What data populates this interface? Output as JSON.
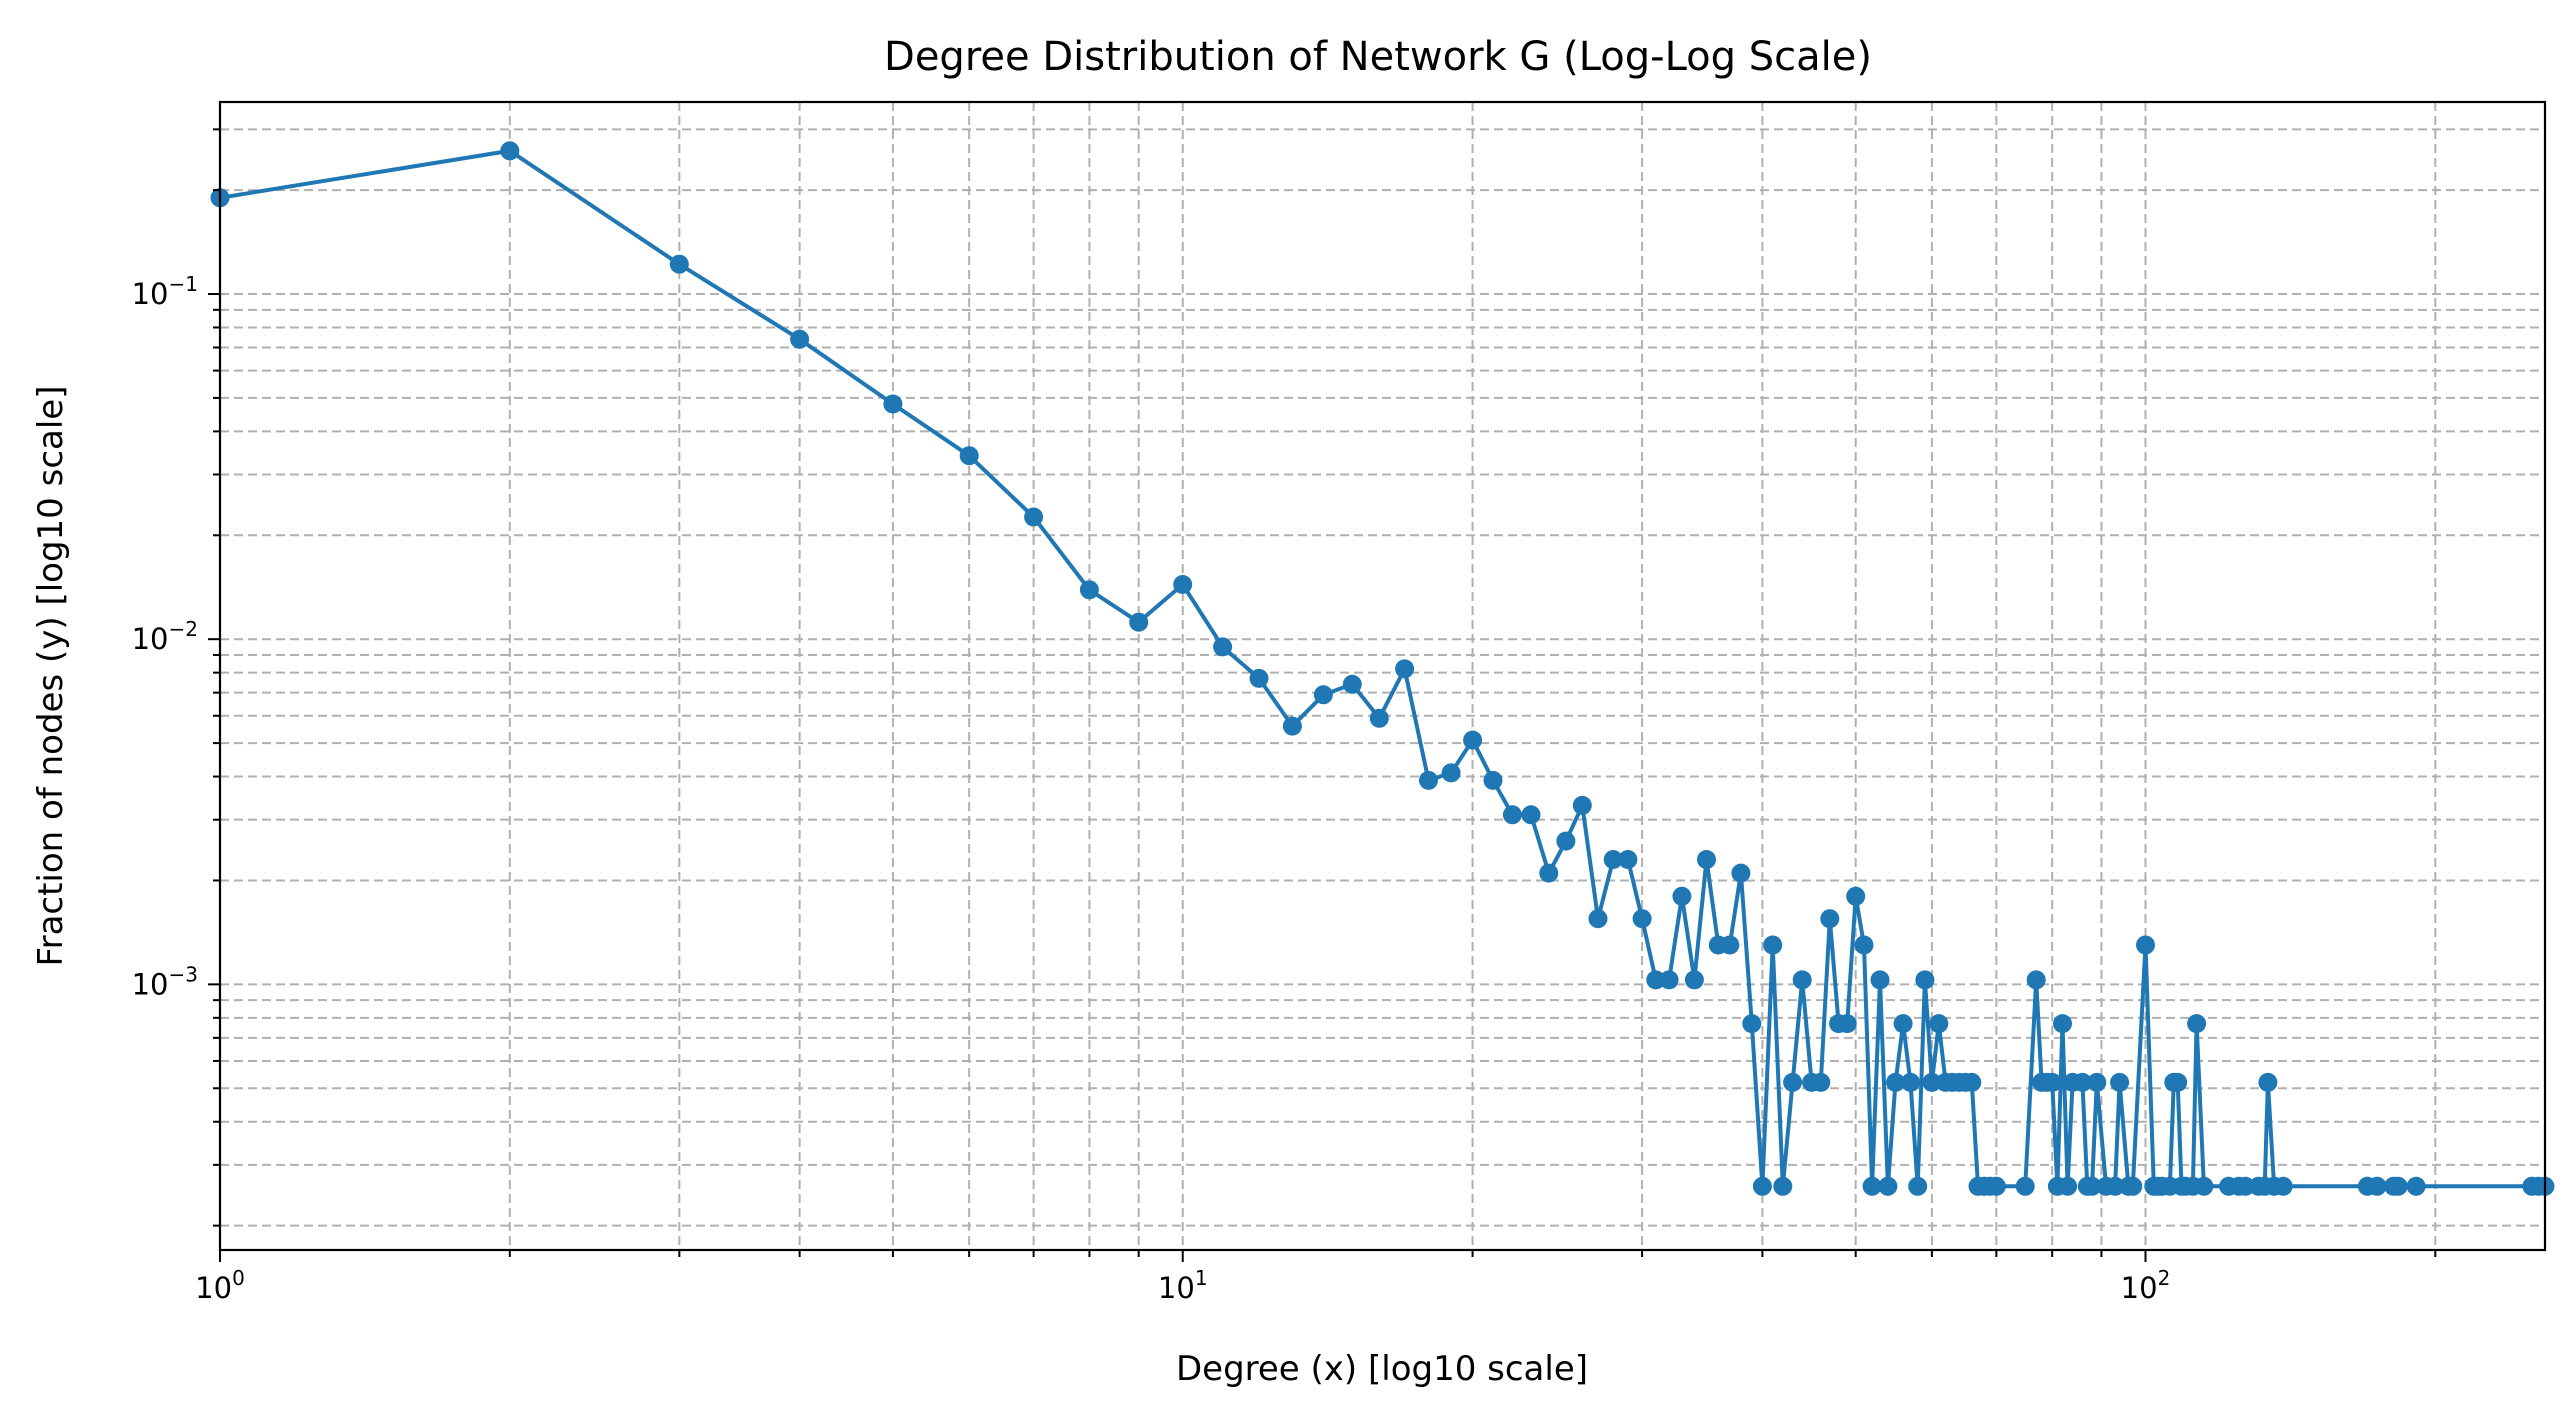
{
  "chart_data": {
    "type": "line",
    "title": "Degree Distribution of Network G (Log-Log Scale)",
    "xlabel": "Degree (x) [log10 scale]",
    "ylabel": "Fraction of nodes (y) [log10 scale]",
    "xscale": "log10",
    "yscale": "log10",
    "xlim": [
      1,
      260
    ],
    "ylim": [
      0.00017,
      0.36
    ],
    "grid": true,
    "grid_style": "dashed",
    "marker": "circle",
    "line_color": "#1f77b4",
    "x_ticks": [
      {
        "base": "10",
        "exp": "0",
        "value": 1
      },
      {
        "base": "10",
        "exp": "1",
        "value": 10
      },
      {
        "base": "10",
        "exp": "2",
        "value": 100
      }
    ],
    "y_ticks": [
      {
        "base": "10",
        "exp": "−1",
        "value": 0.1
      },
      {
        "base": "10",
        "exp": "−2",
        "value": 0.01
      },
      {
        "base": "10",
        "exp": "−3",
        "value": 0.001
      }
    ],
    "series": [
      {
        "points": [
          [
            1,
            0.19
          ],
          [
            2,
            0.26
          ],
          [
            3,
            0.122
          ],
          [
            4,
            0.074
          ],
          [
            5,
            0.048
          ],
          [
            6,
            0.034
          ],
          [
            7,
            0.0226
          ],
          [
            8,
            0.0139
          ],
          [
            9,
            0.0112
          ],
          [
            10,
            0.0144
          ],
          [
            11,
            0.0095
          ],
          [
            12,
            0.0077
          ],
          [
            13,
            0.0056
          ],
          [
            14,
            0.0069
          ],
          [
            15,
            0.0074
          ],
          [
            16,
            0.0059
          ],
          [
            17,
            0.0082
          ],
          [
            18,
            0.0039
          ],
          [
            19,
            0.0041
          ],
          [
            20,
            0.0051
          ],
          [
            21,
            0.0039
          ],
          [
            22,
            0.0031
          ],
          [
            23,
            0.0031
          ],
          [
            24,
            0.0021
          ],
          [
            25,
            0.0026
          ],
          [
            26,
            0.0033
          ],
          [
            27,
            0.00155
          ],
          [
            28,
            0.0023
          ],
          [
            29,
            0.0023
          ],
          [
            30,
            0.00155
          ],
          [
            31,
            0.00103
          ],
          [
            32,
            0.00103
          ],
          [
            33,
            0.0018
          ],
          [
            34,
            0.00103
          ],
          [
            35,
            0.0023
          ],
          [
            36,
            0.0013
          ],
          [
            37,
            0.0013
          ],
          [
            38,
            0.0021
          ],
          [
            39,
            0.00077
          ],
          [
            40,
            0.00026
          ],
          [
            41,
            0.0013
          ],
          [
            42,
            0.00026
          ],
          [
            43,
            0.00052
          ],
          [
            44,
            0.00103
          ],
          [
            45,
            0.00052
          ],
          [
            46,
            0.00052
          ],
          [
            47,
            0.00155
          ],
          [
            48,
            0.00077
          ],
          [
            49,
            0.00077
          ],
          [
            50,
            0.0018
          ],
          [
            51,
            0.0013
          ],
          [
            52,
            0.00026
          ],
          [
            53,
            0.00103
          ],
          [
            54,
            0.00026
          ],
          [
            55,
            0.00052
          ],
          [
            56,
            0.00077
          ],
          [
            57,
            0.00052
          ],
          [
            58,
            0.00026
          ],
          [
            59,
            0.00103
          ],
          [
            60,
            0.00052
          ],
          [
            61,
            0.00077
          ],
          [
            62,
            0.00052
          ],
          [
            63,
            0.00052
          ],
          [
            64,
            0.00052
          ],
          [
            65,
            0.00052
          ],
          [
            66,
            0.00052
          ],
          [
            67,
            0.00026
          ],
          [
            68,
            0.00026
          ],
          [
            69,
            0.00026
          ],
          [
            70,
            0.00026
          ],
          [
            75,
            0.00026
          ],
          [
            77,
            0.00103
          ],
          [
            78,
            0.00052
          ],
          [
            79,
            0.00052
          ],
          [
            80,
            0.00052
          ],
          [
            81,
            0.00026
          ],
          [
            82,
            0.00077
          ],
          [
            83,
            0.00026
          ],
          [
            84,
            0.00052
          ],
          [
            86,
            0.00052
          ],
          [
            87,
            0.00026
          ],
          [
            88,
            0.00026
          ],
          [
            89,
            0.00052
          ],
          [
            91,
            0.00026
          ],
          [
            93,
            0.00026
          ],
          [
            94,
            0.00052
          ],
          [
            96,
            0.00026
          ],
          [
            97,
            0.00026
          ],
          [
            100,
            0.0013
          ],
          [
            102,
            0.00026
          ],
          [
            103,
            0.00026
          ],
          [
            104,
            0.00026
          ],
          [
            106,
            0.00026
          ],
          [
            107,
            0.00052
          ],
          [
            108,
            0.00052
          ],
          [
            109,
            0.00026
          ],
          [
            110,
            0.00026
          ],
          [
            112,
            0.00026
          ],
          [
            113,
            0.00077
          ],
          [
            115,
            0.00026
          ],
          [
            122,
            0.00026
          ],
          [
            125,
            0.00026
          ],
          [
            127,
            0.00026
          ],
          [
            131,
            0.00026
          ],
          [
            133,
            0.00026
          ],
          [
            134,
            0.00052
          ],
          [
            136,
            0.00026
          ],
          [
            139,
            0.00026
          ],
          [
            170,
            0.00026
          ],
          [
            174,
            0.00026
          ],
          [
            181,
            0.00026
          ],
          [
            183,
            0.00026
          ],
          [
            191,
            0.00026
          ],
          [
            252,
            0.00026
          ],
          [
            256,
            0.00026
          ],
          [
            260,
            0.00026
          ]
        ]
      }
    ]
  }
}
